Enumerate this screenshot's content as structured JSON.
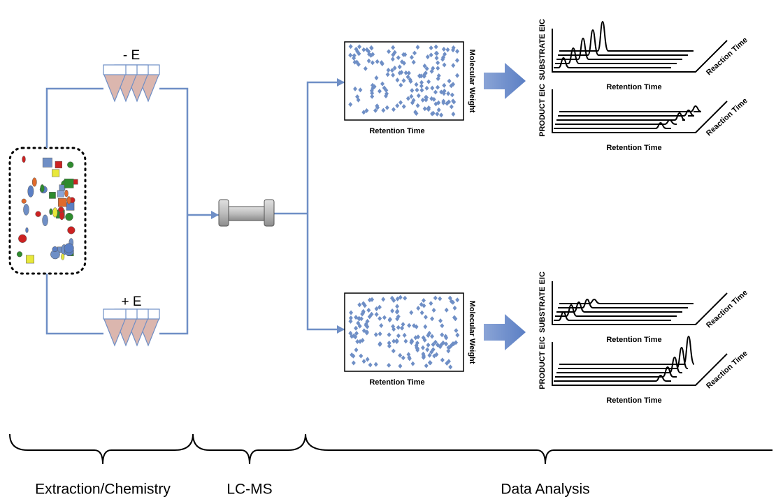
{
  "extraction": {
    "minus_label": "- E",
    "plus_label": "+ E"
  },
  "scatter_plots": [
    {
      "y_label": "Molecular Weight",
      "x_label": "Retention Time"
    },
    {
      "y_label": "Molecular Weight",
      "x_label": "Retention Time"
    }
  ],
  "eic_panels": [
    {
      "substrate": {
        "y_label": "SUBSTRATE EIC",
        "x_label": "Retention Time",
        "z_label": "Reaction Time"
      },
      "product": {
        "y_label": "PRODUCT EIC",
        "x_label": "Retention Time",
        "z_label": "Reaction Time"
      }
    },
    {
      "substrate": {
        "y_label": "SUBSTRATE EIC",
        "x_label": "Retention Time",
        "z_label": "Reaction Time"
      },
      "product": {
        "y_label": "PRODUCT EIC",
        "x_label": "Retention Time",
        "z_label": "Reaction Time"
      }
    }
  ],
  "stages": [
    {
      "label": "Extraction/Chemistry"
    },
    {
      "label": "LC-MS"
    },
    {
      "label": "Data Analysis"
    }
  ]
}
